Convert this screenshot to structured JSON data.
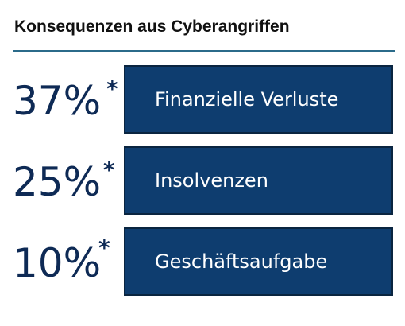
{
  "chart_data": {
    "type": "table",
    "title": "Konsequenzen aus Cyberangriffen",
    "rows": [
      {
        "value_label": "37%",
        "footnote_mark": "*",
        "label": "Finanzielle Verluste",
        "value": 37
      },
      {
        "value_label": "25%",
        "footnote_mark": "*",
        "label": "Insolvenzen",
        "value": 25
      },
      {
        "value_label": "10%",
        "footnote_mark": "*",
        "label": "Geschäftsaufgabe",
        "value": 10
      }
    ],
    "colors": {
      "box_fill": "#0e3d6f",
      "box_border": "#0a2540",
      "percent_text": "#0e2a55",
      "title_rule": "#2b6b8a"
    }
  }
}
